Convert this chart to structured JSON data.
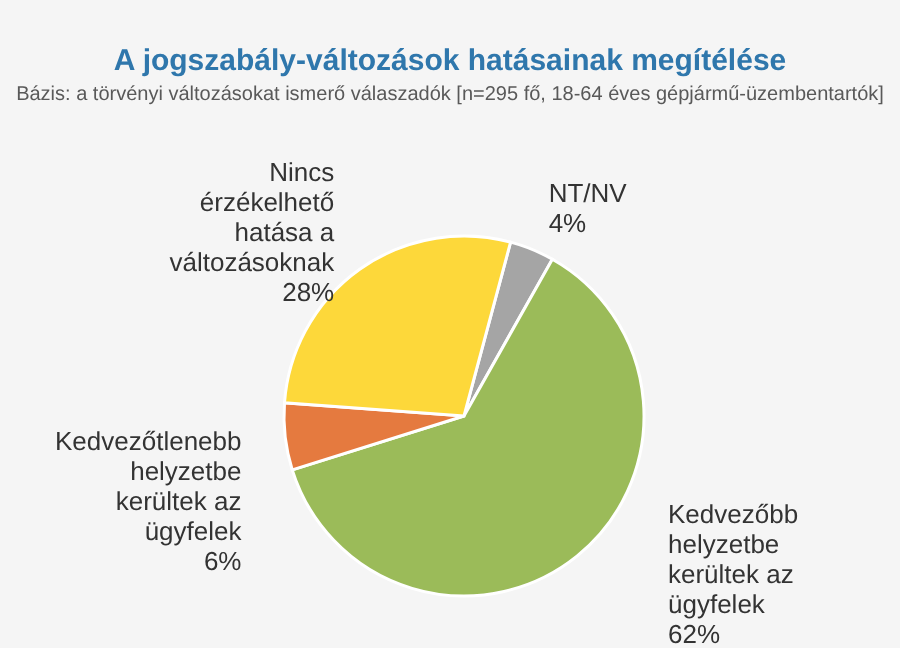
{
  "chart_data": {
    "type": "pie",
    "title": "A jogszabály-változások hatásainak megítélése",
    "subtitle": "Bázis: a törvényi változásokat ismerő válaszadók [n=295 fő, 18-64 éves gépjármű-üzembentartók]",
    "categories": [
      "NT/NV",
      "Kedvezőbb helyzetbe kerültek az ügyfelek",
      "Kedvezőtlenebb helyzetbe kerültek az ügyfelek",
      "Nincs érzékelhető hatása a változásoknak"
    ],
    "values": [
      4,
      62,
      6,
      28
    ],
    "value_labels": [
      "4%",
      "62%",
      "6%",
      "28%"
    ],
    "colors": [
      "#a5a5a5",
      "#9bbb59",
      "#e57a3f",
      "#fdd83a"
    ]
  }
}
